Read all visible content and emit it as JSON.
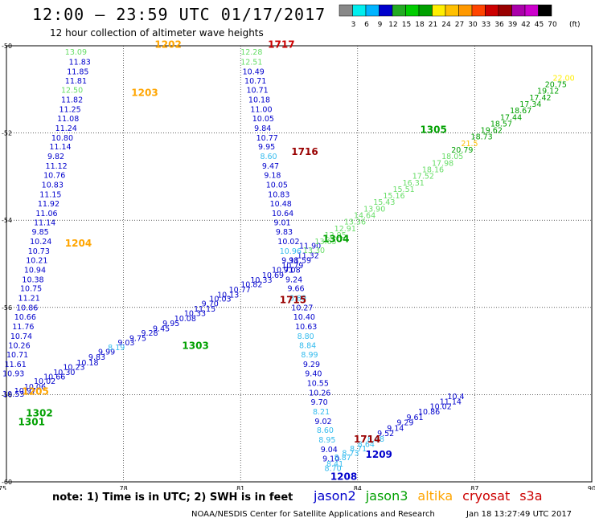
{
  "title": "12:00 – 23:59 UTC 01/17/2017",
  "subtitle": "12 hour collection of altimeter wave heights",
  "colorbar": {
    "unit": "(ft)",
    "ticks": [
      "3",
      "6",
      "9",
      "12",
      "15",
      "18",
      "21",
      "24",
      "27",
      "30",
      "33",
      "36",
      "39",
      "42",
      "45",
      "70"
    ],
    "colors": [
      "#888888",
      "#00eeee",
      "#00b4ff",
      "#0000cc",
      "#22aa22",
      "#00cc00",
      "#00a000",
      "#ffee00",
      "#ffc000",
      "#ff9900",
      "#ff4400",
      "#cc0000",
      "#990000",
      "#aa00aa",
      "#cc00cc",
      "#000000"
    ]
  },
  "note": "note:  1) Time is in UTC;  2) SWH is in feet",
  "series_labels": [
    {
      "name": "jason2",
      "color": "#0000cc"
    },
    {
      "name": "jason3",
      "color": "#00a000"
    },
    {
      "name": "altika",
      "color": "#ffa500"
    },
    {
      "name": "cryosat",
      "color": "#cc0000"
    },
    {
      "name": "s3a",
      "color": "#cc0000"
    }
  ],
  "footer": "NOAA/NESDIS Center for Satellite Applications and Research",
  "footer_timestamp": "Jan 18 13:27:49 UTC 2017",
  "chart_data": {
    "type": "scatter",
    "xlim": [
      75,
      90
    ],
    "ylim": [
      -60,
      -50
    ],
    "xticks": [
      "75",
      "78",
      "81",
      "84",
      "87",
      "90"
    ],
    "yticks": [
      "-50",
      "-52",
      "-54",
      "-56",
      "-58",
      "-60"
    ],
    "grid": true,
    "points": [
      {
        "x": 76.5,
        "y": -50.2,
        "label": "13.09",
        "color": "#66dd66"
      },
      {
        "x": 76.6,
        "y": -50.43,
        "label": "11.83",
        "color": "#0000cc"
      },
      {
        "x": 76.55,
        "y": -50.65,
        "label": "11.85",
        "color": "#0000cc"
      },
      {
        "x": 76.5,
        "y": -50.87,
        "label": "11.81",
        "color": "#0000cc"
      },
      {
        "x": 76.4,
        "y": -51.08,
        "label": "12.50",
        "color": "#66dd66"
      },
      {
        "x": 76.4,
        "y": -51.3,
        "label": "11.82",
        "color": "#0000cc"
      },
      {
        "x": 76.35,
        "y": -51.52,
        "label": "11.25",
        "color": "#0000cc"
      },
      {
        "x": 76.3,
        "y": -51.73,
        "label": "11.08",
        "color": "#0000cc"
      },
      {
        "x": 76.25,
        "y": -51.95,
        "label": "11.24",
        "color": "#0000cc"
      },
      {
        "x": 76.15,
        "y": -52.17,
        "label": "10.80",
        "color": "#0000cc"
      },
      {
        "x": 76.1,
        "y": -52.38,
        "label": "11.14",
        "color": "#0000cc"
      },
      {
        "x": 76.05,
        "y": -52.6,
        "label": "9.82",
        "color": "#0000cc"
      },
      {
        "x": 76.0,
        "y": -52.82,
        "label": "11.12",
        "color": "#0000cc"
      },
      {
        "x": 75.95,
        "y": -53.03,
        "label": "10.76",
        "color": "#0000cc"
      },
      {
        "x": 75.9,
        "y": -53.25,
        "label": "10.83",
        "color": "#0000cc"
      },
      {
        "x": 75.85,
        "y": -53.47,
        "label": "11.15",
        "color": "#0000cc"
      },
      {
        "x": 75.8,
        "y": -53.68,
        "label": "11.92",
        "color": "#0000cc"
      },
      {
        "x": 75.75,
        "y": -53.9,
        "label": "11.06",
        "color": "#0000cc"
      },
      {
        "x": 75.7,
        "y": -54.12,
        "label": "11.14",
        "color": "#0000cc"
      },
      {
        "x": 75.65,
        "y": -54.33,
        "label": "9.85",
        "color": "#0000cc"
      },
      {
        "x": 75.6,
        "y": -54.55,
        "label": "10.24",
        "color": "#0000cc"
      },
      {
        "x": 75.55,
        "y": -54.77,
        "label": "10.73",
        "color": "#0000cc"
      },
      {
        "x": 75.5,
        "y": -54.98,
        "label": "10.21",
        "color": "#0000cc"
      },
      {
        "x": 75.45,
        "y": -55.2,
        "label": "10.94",
        "color": "#0000cc"
      },
      {
        "x": 75.4,
        "y": -55.42,
        "label": "10.38",
        "color": "#0000cc"
      },
      {
        "x": 75.35,
        "y": -55.63,
        "label": "10.75",
        "color": "#0000cc"
      },
      {
        "x": 75.3,
        "y": -55.85,
        "label": "11.21",
        "color": "#0000cc"
      },
      {
        "x": 75.25,
        "y": -56.07,
        "label": "10.86",
        "color": "#0000cc"
      },
      {
        "x": 75.2,
        "y": -56.28,
        "label": "10.66",
        "color": "#0000cc"
      },
      {
        "x": 75.15,
        "y": -56.5,
        "label": "11.76",
        "color": "#0000cc"
      },
      {
        "x": 75.1,
        "y": -56.72,
        "label": "10.74",
        "color": "#0000cc"
      },
      {
        "x": 75.05,
        "y": -56.93,
        "label": "10.26",
        "color": "#0000cc"
      },
      {
        "x": 75.0,
        "y": -57.15,
        "label": "10.71",
        "color": "#0000cc"
      },
      {
        "x": 74.95,
        "y": -57.37,
        "label": "11.61",
        "color": "#0000cc"
      },
      {
        "x": 74.9,
        "y": -57.58,
        "label": "10.93",
        "color": "#0000cc"
      },
      {
        "x": 74.9,
        "y": -58.05,
        "label": "10.53",
        "color": "#0000cc"
      },
      {
        "x": 75.2,
        "y": -57.97,
        "label": "10.97",
        "color": "#0000cc"
      },
      {
        "x": 75.45,
        "y": -57.88,
        "label": "10.06",
        "color": "#0000cc"
      },
      {
        "x": 75.7,
        "y": -57.75,
        "label": "10.02",
        "color": "#0000cc"
      },
      {
        "x": 75.95,
        "y": -57.65,
        "label": "10.66",
        "color": "#0000cc"
      },
      {
        "x": 76.2,
        "y": -57.55,
        "label": "10.30",
        "color": "#0000cc"
      },
      {
        "x": 76.45,
        "y": -57.43,
        "label": "10.23",
        "color": "#0000cc"
      },
      {
        "x": 76.8,
        "y": -57.33,
        "label": "10.18",
        "color": "#0000cc"
      },
      {
        "x": 77.1,
        "y": -57.2,
        "label": "9.83",
        "color": "#0000cc"
      },
      {
        "x": 77.35,
        "y": -57.08,
        "label": "9.99",
        "color": "#0000cc"
      },
      {
        "x": 77.6,
        "y": -56.98,
        "label": "8.19",
        "color": "#33bbee"
      },
      {
        "x": 77.85,
        "y": -56.87,
        "label": "9.03",
        "color": "#0000cc"
      },
      {
        "x": 78.15,
        "y": -56.77,
        "label": "9.75",
        "color": "#0000cc"
      },
      {
        "x": 78.45,
        "y": -56.65,
        "label": "9.28",
        "color": "#0000cc"
      },
      {
        "x": 78.75,
        "y": -56.55,
        "label": "9.45",
        "color": "#0000cc"
      },
      {
        "x": 79.0,
        "y": -56.43,
        "label": "9.95",
        "color": "#0000cc"
      },
      {
        "x": 79.3,
        "y": -56.32,
        "label": "10.08",
        "color": "#0000cc"
      },
      {
        "x": 79.55,
        "y": -56.2,
        "label": "10.33",
        "color": "#0000cc"
      },
      {
        "x": 79.8,
        "y": -56.1,
        "label": "11.15",
        "color": "#0000cc"
      },
      {
        "x": 80.0,
        "y": -55.98,
        "label": "9.70",
        "color": "#0000cc"
      },
      {
        "x": 80.2,
        "y": -55.87,
        "label": "10.03",
        "color": "#0000cc"
      },
      {
        "x": 80.4,
        "y": -55.77,
        "label": "10.13",
        "color": "#0000cc"
      },
      {
        "x": 80.7,
        "y": -55.65,
        "label": "10.77",
        "color": "#0000cc"
      },
      {
        "x": 81.0,
        "y": -55.53,
        "label": "10.82",
        "color": "#0000cc"
      },
      {
        "x": 81.25,
        "y": -55.43,
        "label": "10.33",
        "color": "#0000cc"
      },
      {
        "x": 81.55,
        "y": -55.32,
        "label": "10.69",
        "color": "#0000cc"
      },
      {
        "x": 81.8,
        "y": -55.2,
        "label": "10.71",
        "color": "#0000cc"
      },
      {
        "x": 82.05,
        "y": -55.1,
        "label": "10.79",
        "color": "#0000cc"
      },
      {
        "x": 82.25,
        "y": -54.98,
        "label": "11.59",
        "color": "#0000cc"
      },
      {
        "x": 82.45,
        "y": -54.87,
        "label": "11.32",
        "color": "#0000cc"
      },
      {
        "x": 82.5,
        "y": -54.65,
        "label": "11.90",
        "color": "#0000cc"
      },
      {
        "x": 82.6,
        "y": -54.75,
        "label": "13.30",
        "color": "#66dd66"
      },
      {
        "x": 82.9,
        "y": -54.55,
        "label": "13.65",
        "color": "#66dd66"
      },
      {
        "x": 83.15,
        "y": -54.4,
        "label": "12.95",
        "color": "#66dd66"
      },
      {
        "x": 83.4,
        "y": -54.25,
        "label": "12.91",
        "color": "#66dd66"
      },
      {
        "x": 83.65,
        "y": -54.1,
        "label": "13.36",
        "color": "#66dd66"
      },
      {
        "x": 83.9,
        "y": -53.95,
        "label": "14.64",
        "color": "#66dd66"
      },
      {
        "x": 84.15,
        "y": -53.8,
        "label": "13.90",
        "color": "#66dd66"
      },
      {
        "x": 84.4,
        "y": -53.65,
        "label": "15.43",
        "color": "#66dd66"
      },
      {
        "x": 84.65,
        "y": -53.5,
        "label": "15.16",
        "color": "#66dd66"
      },
      {
        "x": 84.9,
        "y": -53.35,
        "label": "15.51",
        "color": "#66dd66"
      },
      {
        "x": 85.15,
        "y": -53.2,
        "label": "16.31",
        "color": "#66dd66"
      },
      {
        "x": 85.4,
        "y": -53.05,
        "label": "17.52",
        "color": "#66dd66"
      },
      {
        "x": 85.65,
        "y": -52.9,
        "label": "18.16",
        "color": "#66dd66"
      },
      {
        "x": 85.9,
        "y": -52.75,
        "label": "17.98",
        "color": "#66dd66"
      },
      {
        "x": 86.15,
        "y": -52.6,
        "label": "18.05",
        "color": "#66dd66"
      },
      {
        "x": 86.4,
        "y": -52.45,
        "label": "20.79",
        "color": "#00a000"
      },
      {
        "x": 86.65,
        "y": -52.3,
        "label": "21.5",
        "color": "#ffc000"
      },
      {
        "x": 86.9,
        "y": -52.15,
        "label": "18.73",
        "color": "#00a000"
      },
      {
        "x": 87.15,
        "y": -52.0,
        "label": "19.62",
        "color": "#00a000"
      },
      {
        "x": 87.4,
        "y": -51.85,
        "label": "18.57",
        "color": "#00a000"
      },
      {
        "x": 87.65,
        "y": -51.7,
        "label": "17.44",
        "color": "#00a000"
      },
      {
        "x": 87.9,
        "y": -51.55,
        "label": "18.67",
        "color": "#00a000"
      },
      {
        "x": 88.15,
        "y": -51.4,
        "label": "17.34",
        "color": "#00a000"
      },
      {
        "x": 88.4,
        "y": -51.25,
        "label": "17.42",
        "color": "#00a000"
      },
      {
        "x": 88.6,
        "y": -51.1,
        "label": "19.12",
        "color": "#00a000"
      },
      {
        "x": 88.8,
        "y": -50.95,
        "label": "20.75",
        "color": "#00a000"
      },
      {
        "x": 89.0,
        "y": -50.8,
        "label": "22.00",
        "color": "#ffee00"
      },
      {
        "x": 81.0,
        "y": -50.2,
        "label": "12.28",
        "color": "#66dd66"
      },
      {
        "x": 81.0,
        "y": -50.43,
        "label": "12.51",
        "color": "#66dd66"
      },
      {
        "x": 81.05,
        "y": -50.65,
        "label": "10.49",
        "color": "#0000cc"
      },
      {
        "x": 81.1,
        "y": -50.87,
        "label": "10.71",
        "color": "#0000cc"
      },
      {
        "x": 81.15,
        "y": -51.08,
        "label": "10.71",
        "color": "#0000cc"
      },
      {
        "x": 81.2,
        "y": -51.3,
        "label": "10.18",
        "color": "#0000cc"
      },
      {
        "x": 81.25,
        "y": -51.52,
        "label": "11.00",
        "color": "#0000cc"
      },
      {
        "x": 81.3,
        "y": -51.73,
        "label": "10.05",
        "color": "#0000cc"
      },
      {
        "x": 81.35,
        "y": -51.95,
        "label": "9.84",
        "color": "#0000cc"
      },
      {
        "x": 81.4,
        "y": -52.17,
        "label": "10.77",
        "color": "#0000cc"
      },
      {
        "x": 81.45,
        "y": -52.38,
        "label": "9.95",
        "color": "#0000cc"
      },
      {
        "x": 81.5,
        "y": -52.6,
        "label": "8.60",
        "color": "#33bbee"
      },
      {
        "x": 81.55,
        "y": -52.82,
        "label": "9.47",
        "color": "#0000cc"
      },
      {
        "x": 81.6,
        "y": -53.03,
        "label": "9.18",
        "color": "#0000cc"
      },
      {
        "x": 81.65,
        "y": -53.25,
        "label": "10.05",
        "color": "#0000cc"
      },
      {
        "x": 81.7,
        "y": -53.47,
        "label": "10.83",
        "color": "#0000cc"
      },
      {
        "x": 81.75,
        "y": -53.68,
        "label": "10.48",
        "color": "#0000cc"
      },
      {
        "x": 81.8,
        "y": -53.9,
        "label": "10.64",
        "color": "#0000cc"
      },
      {
        "x": 81.85,
        "y": -54.12,
        "label": "9.01",
        "color": "#0000cc"
      },
      {
        "x": 81.9,
        "y": -54.33,
        "label": "9.83",
        "color": "#0000cc"
      },
      {
        "x": 81.95,
        "y": -54.55,
        "label": "10.02",
        "color": "#0000cc"
      },
      {
        "x": 82.0,
        "y": -54.77,
        "label": "10.96",
        "color": "#33bbee"
      },
      {
        "x": 82.05,
        "y": -54.98,
        "label": "9.98",
        "color": "#0000cc"
      },
      {
        "x": 82.1,
        "y": -55.2,
        "label": "9.08",
        "color": "#0000cc"
      },
      {
        "x": 82.15,
        "y": -55.42,
        "label": "9.24",
        "color": "#0000cc"
      },
      {
        "x": 82.2,
        "y": -55.63,
        "label": "9.66",
        "color": "#0000cc"
      },
      {
        "x": 82.25,
        "y": -55.85,
        "label": "8.89",
        "color": "#33bbee"
      },
      {
        "x": 82.3,
        "y": -56.07,
        "label": "10.27",
        "color": "#0000cc"
      },
      {
        "x": 82.35,
        "y": -56.28,
        "label": "10.40",
        "color": "#0000cc"
      },
      {
        "x": 82.4,
        "y": -56.5,
        "label": "10.63",
        "color": "#0000cc"
      },
      {
        "x": 82.45,
        "y": -56.72,
        "label": "8.80",
        "color": "#33bbee"
      },
      {
        "x": 82.5,
        "y": -56.93,
        "label": "8.84",
        "color": "#33bbee"
      },
      {
        "x": 82.55,
        "y": -57.15,
        "label": "8.99",
        "color": "#33bbee"
      },
      {
        "x": 82.6,
        "y": -57.37,
        "label": "9.29",
        "color": "#0000cc"
      },
      {
        "x": 82.65,
        "y": -57.58,
        "label": "9.40",
        "color": "#0000cc"
      },
      {
        "x": 82.7,
        "y": -57.8,
        "label": "10.55",
        "color": "#0000cc"
      },
      {
        "x": 82.75,
        "y": -58.02,
        "label": "10.26",
        "color": "#0000cc"
      },
      {
        "x": 82.8,
        "y": -58.23,
        "label": "9.70",
        "color": "#0000cc"
      },
      {
        "x": 82.85,
        "y": -58.45,
        "label": "8.21",
        "color": "#33bbee"
      },
      {
        "x": 82.9,
        "y": -58.67,
        "label": "9.02",
        "color": "#0000cc"
      },
      {
        "x": 82.95,
        "y": -58.88,
        "label": "8.60",
        "color": "#33bbee"
      },
      {
        "x": 83.0,
        "y": -59.1,
        "label": "8.95",
        "color": "#33bbee"
      },
      {
        "x": 83.05,
        "y": -59.32,
        "label": "9.04",
        "color": "#0000cc"
      },
      {
        "x": 83.1,
        "y": -59.53,
        "label": "9.10",
        "color": "#0000cc"
      },
      {
        "x": 83.15,
        "y": -59.75,
        "label": "8.70",
        "color": "#33bbee"
      },
      {
        "x": 83.2,
        "y": -59.65,
        "label": "8.41",
        "color": "#33bbee"
      },
      {
        "x": 83.4,
        "y": -59.5,
        "label": "8.87",
        "color": "#33bbee"
      },
      {
        "x": 83.6,
        "y": -59.4,
        "label": "8.73",
        "color": "#33bbee"
      },
      {
        "x": 83.8,
        "y": -59.3,
        "label": "8.71",
        "color": "#33bbee"
      },
      {
        "x": 84.0,
        "y": -59.2,
        "label": "8.64",
        "color": "#33bbee"
      },
      {
        "x": 84.25,
        "y": -59.08,
        "label": "8.68",
        "color": "#33bbee"
      },
      {
        "x": 84.5,
        "y": -58.95,
        "label": "9.52",
        "color": "#0000cc"
      },
      {
        "x": 84.75,
        "y": -58.83,
        "label": "9.14",
        "color": "#0000cc"
      },
      {
        "x": 85.0,
        "y": -58.7,
        "label": "9.29",
        "color": "#0000cc"
      },
      {
        "x": 85.25,
        "y": -58.58,
        "label": "9.61",
        "color": "#0000cc"
      },
      {
        "x": 85.55,
        "y": -58.45,
        "label": "10.86",
        "color": "#0000cc"
      },
      {
        "x": 85.85,
        "y": -58.33,
        "label": "10.02",
        "color": "#0000cc"
      },
      {
        "x": 86.1,
        "y": -58.22,
        "label": "11.14",
        "color": "#0000cc"
      },
      {
        "x": 86.3,
        "y": -58.1,
        "label": "10.4",
        "color": "#0000cc"
      }
    ],
    "time_labels": [
      {
        "x": 78.8,
        "y": -50.05,
        "label": "1202",
        "color": "#ffa500"
      },
      {
        "x": 81.7,
        "y": -50.05,
        "label": "1717",
        "color": "#cc0000"
      },
      {
        "x": 78.2,
        "y": -51.15,
        "label": "1203",
        "color": "#ffa500"
      },
      {
        "x": 82.3,
        "y": -52.5,
        "label": "1716",
        "color": "#990000"
      },
      {
        "x": 76.5,
        "y": -54.6,
        "label": "1204",
        "color": "#ffa500"
      },
      {
        "x": 83.1,
        "y": -54.5,
        "label": "1304",
        "color": "#00a000"
      },
      {
        "x": 82.0,
        "y": -55.9,
        "label": "1715",
        "color": "#990000"
      },
      {
        "x": 79.5,
        "y": -56.95,
        "label": "1303",
        "color": "#00a000"
      },
      {
        "x": 75.4,
        "y": -58.0,
        "label": "1205",
        "color": "#ffa500"
      },
      {
        "x": 75.5,
        "y": -58.5,
        "label": "1302",
        "color": "#00a000"
      },
      {
        "x": 75.3,
        "y": -58.7,
        "label": "1301",
        "color": "#00a000"
      },
      {
        "x": 85.6,
        "y": -52.0,
        "label": "1305",
        "color": "#00a000"
      },
      {
        "x": 83.9,
        "y": -59.1,
        "label": "1714",
        "color": "#990000"
      },
      {
        "x": 84.2,
        "y": -59.45,
        "label": "1209",
        "color": "#0000cc"
      },
      {
        "x": 83.3,
        "y": -59.95,
        "label": "1208",
        "color": "#0000cc"
      }
    ]
  }
}
